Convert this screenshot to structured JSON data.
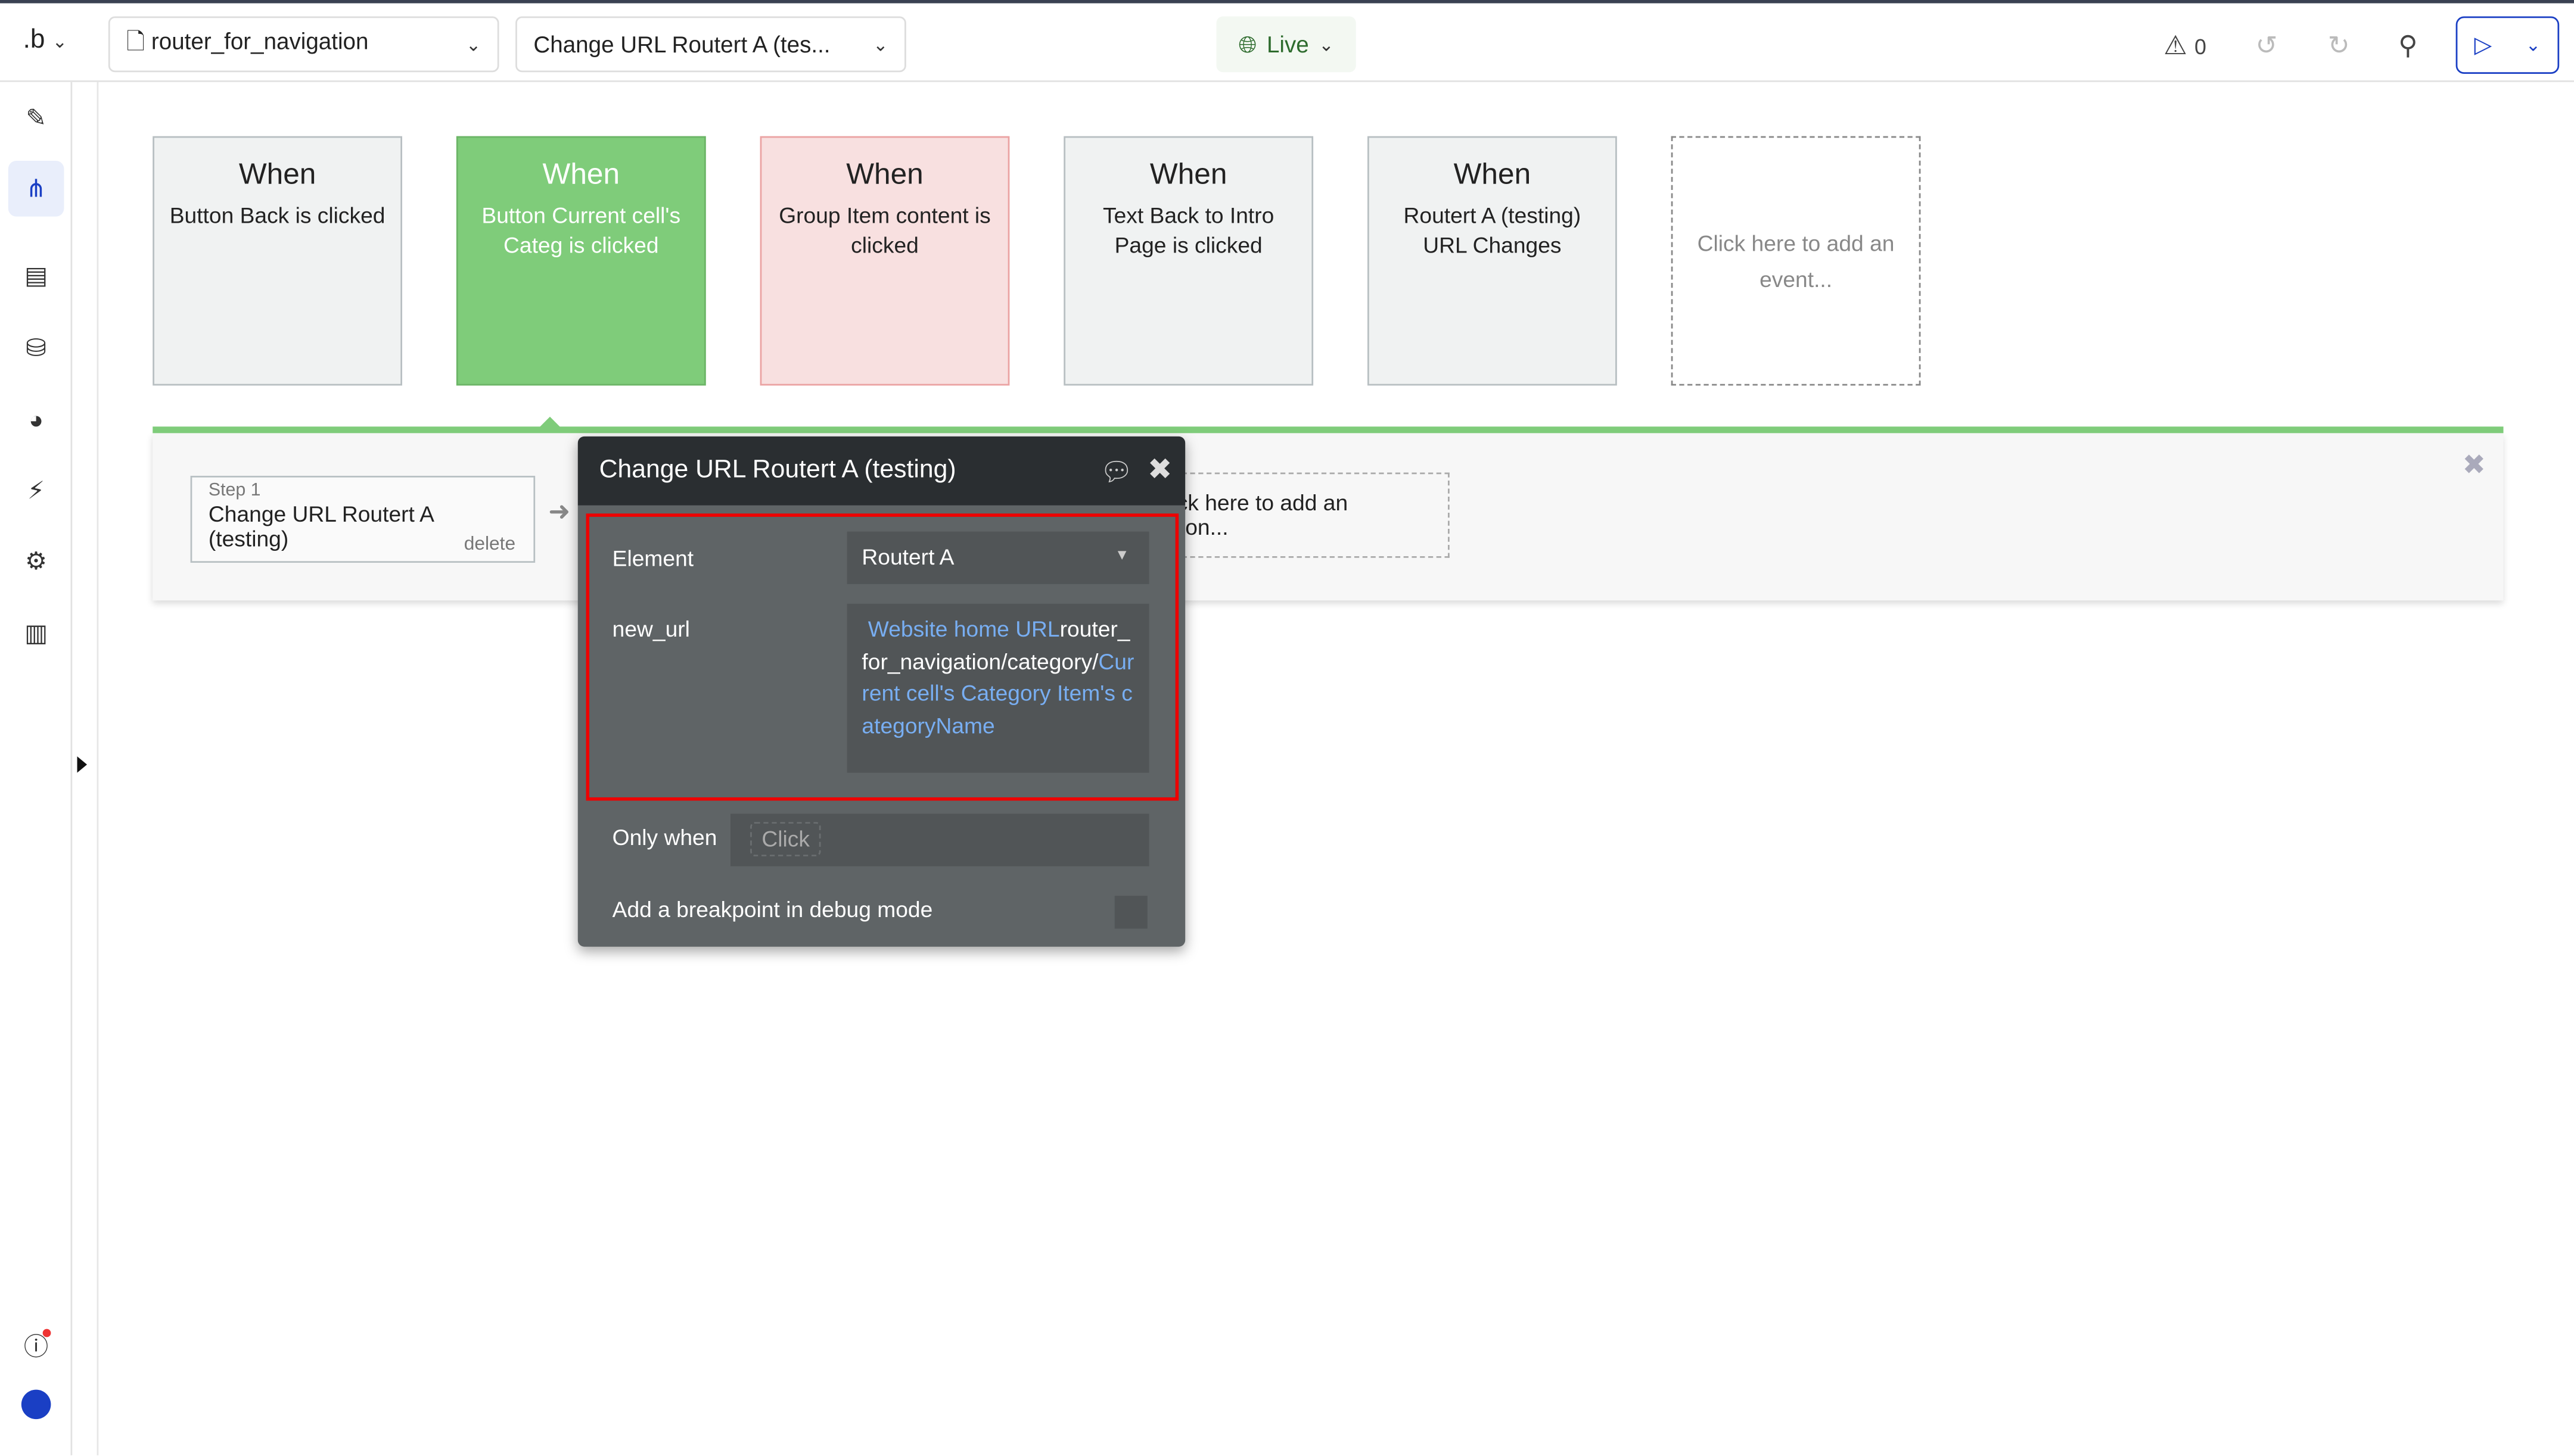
{
  "topbar": {
    "logo": ".b",
    "page_select": "router_for_navigation",
    "workflow_select": "Change URL Routert A (tes...",
    "live_label": "Live",
    "issues_count": "0",
    "accent": "#1a3fc4"
  },
  "sidebar": {
    "icons": [
      "pencil-icon",
      "workflow-icon",
      "layout-icon",
      "database-icon",
      "palette-icon",
      "plugin-icon",
      "settings-icon",
      "analytics-icon"
    ],
    "active": "workflow-icon"
  },
  "events": [
    {
      "when": "When",
      "desc": "Button Back is clicked",
      "state": "default"
    },
    {
      "when": "When",
      "desc": "Button Current cell's Categ is clicked",
      "state": "selected"
    },
    {
      "when": "When",
      "desc": "Group Item content is clicked",
      "state": "error"
    },
    {
      "when": "When",
      "desc": "Text Back to Intro Page is clicked",
      "state": "default"
    },
    {
      "when": "When",
      "desc": "Routert A (testing) URL Changes",
      "state": "default"
    }
  ],
  "add_event": "Click here to add an event...",
  "actions": {
    "step_label": "Step 1",
    "step_title": "Change URL Routert A (testing)",
    "delete": "delete",
    "add_action": "Click here to add an action..."
  },
  "popup": {
    "title": "Change URL Routert A (testing)",
    "element_label": "Element",
    "element_value": "Routert A",
    "new_url_label": "new_url",
    "new_url_parts": {
      "p1": "Website home URL",
      "p2": "router_for_navigation/category/",
      "p3": "Current cell's Category Item's categoryName"
    },
    "only_when_label": "Only when",
    "only_when_placeholder": "Click",
    "breakpoint_label": "Add a breakpoint in debug mode",
    "breakpoint_checked": false
  }
}
